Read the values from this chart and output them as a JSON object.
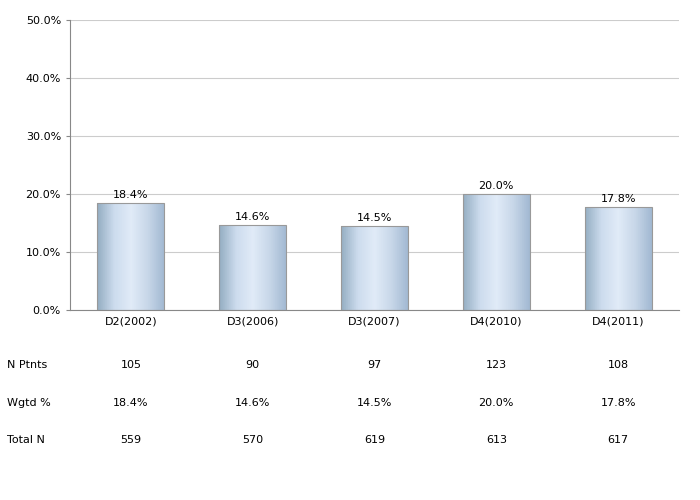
{
  "categories": [
    "D2(2002)",
    "D3(2006)",
    "D3(2007)",
    "D4(2010)",
    "D4(2011)"
  ],
  "values": [
    18.4,
    14.6,
    14.5,
    20.0,
    17.8
  ],
  "n_ptnts": [
    105,
    90,
    97,
    123,
    108
  ],
  "wgtd_pct": [
    "18.4%",
    "14.6%",
    "14.5%",
    "20.0%",
    "17.8%"
  ],
  "total_n": [
    559,
    570,
    619,
    613,
    617
  ],
  "ylim": [
    0,
    50
  ],
  "yticks": [
    0,
    10,
    20,
    30,
    40,
    50
  ],
  "ytick_labels": [
    "0.0%",
    "10.0%",
    "20.0%",
    "30.0%",
    "40.0%",
    "50.0%"
  ],
  "bar_edge_color": "#999999",
  "background_color": "#ffffff",
  "plot_bg_color": "#ffffff",
  "grid_color": "#cccccc",
  "tick_fontsize": 8,
  "table_fontsize": 8,
  "value_label_fontsize": 8,
  "row_labels": [
    "N Ptnts",
    "Wgtd %",
    "Total N"
  ]
}
